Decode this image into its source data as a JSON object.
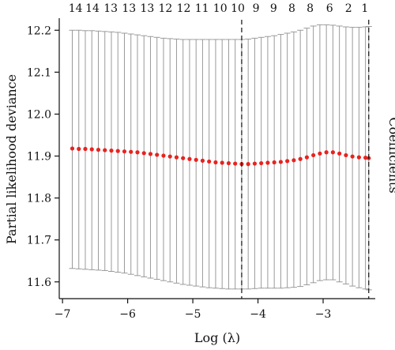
{
  "chart_data": {
    "type": "line",
    "xlabel": "Log (λ)",
    "ylabel": "Partial likelihood deviance",
    "right_label": "Coefficients",
    "xlim": [
      -7.05,
      -2.2
    ],
    "ylim": [
      11.56,
      12.225
    ],
    "x_ticks": [
      -7,
      -6,
      -5,
      -4,
      -3
    ],
    "x_tick_labels": [
      "−7",
      "−6",
      "−5",
      "−4",
      "−3"
    ],
    "y_ticks": [
      11.6,
      11.7,
      11.8,
      11.9,
      12.0,
      12.1,
      12.2
    ],
    "y_tick_labels": [
      "11.6",
      "11.7",
      "11.8",
      "11.9",
      "12.0",
      "12.1",
      "12.2"
    ],
    "top_axis": {
      "labels": [
        "14",
        "14",
        "13",
        "13",
        "13",
        "12",
        "12",
        "11",
        "10",
        "10",
        "9",
        "9",
        "8",
        "8",
        "6",
        "2",
        "1"
      ],
      "positions": [
        -6.8,
        -6.54,
        -6.26,
        -5.98,
        -5.7,
        -5.42,
        -5.14,
        -4.86,
        -4.58,
        -4.31,
        -4.03,
        -3.76,
        -3.48,
        -3.2,
        -2.9,
        -2.61,
        -2.36
      ]
    },
    "vertical_dashed_lines": [
      -4.25,
      -2.3
    ],
    "series": [
      {
        "x": [
          -6.85,
          -6.75,
          -6.65,
          -6.55,
          -6.45,
          -6.35,
          -6.25,
          -6.15,
          -6.05,
          -5.95,
          -5.85,
          -5.75,
          -5.65,
          -5.55,
          -5.45,
          -5.35,
          -5.25,
          -5.15,
          -5.05,
          -4.95,
          -4.85,
          -4.75,
          -4.65,
          -4.55,
          -4.45,
          -4.35,
          -4.25,
          -4.15,
          -4.05,
          -3.95,
          -3.85,
          -3.75,
          -3.65,
          -3.55,
          -3.45,
          -3.35,
          -3.25,
          -3.15,
          -3.05,
          -2.95,
          -2.85,
          -2.75,
          -2.65,
          -2.55,
          -2.45,
          -2.35,
          -2.3
        ],
        "y": [
          11.918,
          11.917,
          11.917,
          11.916,
          11.915,
          11.914,
          11.913,
          11.912,
          11.911,
          11.91,
          11.909,
          11.907,
          11.905,
          11.903,
          11.901,
          11.899,
          11.897,
          11.895,
          11.893,
          11.891,
          11.889,
          11.887,
          11.885,
          11.884,
          11.883,
          11.882,
          11.881,
          11.881,
          11.882,
          11.883,
          11.884,
          11.885,
          11.886,
          11.888,
          11.89,
          11.893,
          11.897,
          11.902,
          11.906,
          11.909,
          11.909,
          11.906,
          11.902,
          11.899,
          11.897,
          11.896,
          11.895
        ],
        "upper": [
          12.2,
          12.2,
          12.199,
          12.199,
          12.198,
          12.197,
          12.196,
          12.195,
          12.193,
          12.191,
          12.189,
          12.187,
          12.185,
          12.183,
          12.181,
          12.18,
          12.179,
          12.178,
          12.178,
          12.178,
          12.178,
          12.178,
          12.178,
          12.178,
          12.178,
          12.178,
          12.178,
          12.179,
          12.181,
          12.183,
          12.185,
          12.187,
          12.19,
          12.193,
          12.196,
          12.2,
          12.205,
          12.21,
          12.213,
          12.213,
          12.212,
          12.21,
          12.208,
          12.207,
          12.207,
          12.208,
          12.209
        ],
        "lower": [
          11.632,
          11.631,
          11.63,
          11.629,
          11.628,
          11.627,
          11.625,
          11.623,
          11.621,
          11.618,
          11.615,
          11.612,
          11.609,
          11.606,
          11.603,
          11.6,
          11.597,
          11.594,
          11.592,
          11.59,
          11.588,
          11.586,
          11.585,
          11.584,
          11.583,
          11.583,
          11.583,
          11.583,
          11.584,
          11.585,
          11.585,
          11.585,
          11.585,
          11.586,
          11.587,
          11.589,
          11.593,
          11.598,
          11.603,
          11.605,
          11.605,
          11.6,
          11.595,
          11.59,
          11.586,
          11.583,
          11.581
        ]
      }
    ],
    "colors": {
      "points": "#e8231f",
      "error_bars": "#9a9a9a",
      "axes": "#111111",
      "dashed": "#111111"
    }
  }
}
